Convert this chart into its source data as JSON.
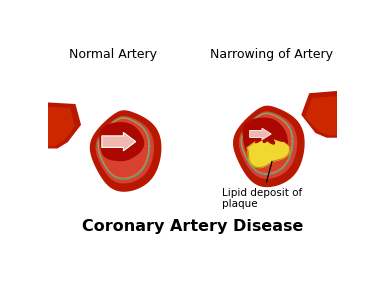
{
  "title": "Coronary Artery Disease",
  "title_fontsize": 11.5,
  "title_fontweight": "bold",
  "label_left": "Normal Artery",
  "label_right": "Narrowing of Artery",
  "label_fontsize": 9,
  "annotation": "Lipid deposit of\nplaque",
  "annotation_fontsize": 7.5,
  "bg_color": "#ffffff",
  "dark_red": "#b81800",
  "med_red": "#cc2800",
  "wall_red": "#d84030",
  "salmon_red": "#e87060",
  "inner_red": "#c02010",
  "lumen_red": "#aa0800",
  "teal": "#50a0a0",
  "gold_line": "#c8a020",
  "plaque_yellow": "#f0d830",
  "plaque_light": "#f8e860",
  "arrow_pink": "#f0b8b0",
  "arrow_white": "#ffffff"
}
